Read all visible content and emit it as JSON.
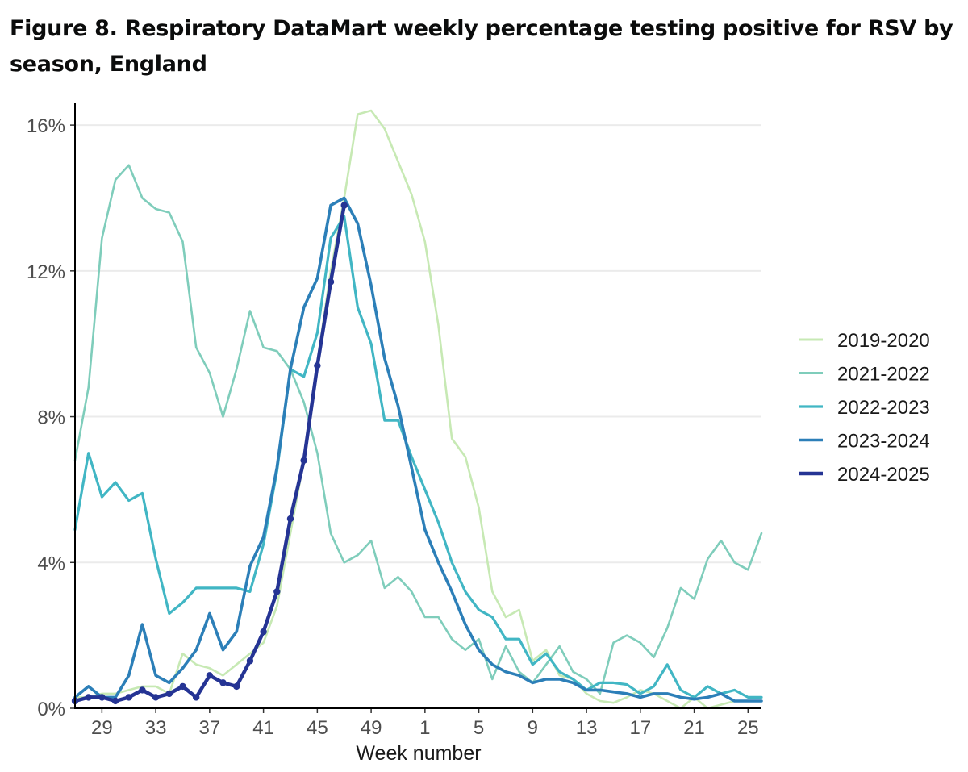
{
  "chart_data": {
    "type": "line",
    "title": "Figure 8. Respiratory DataMart weekly percentage testing positive for RSV by season, England",
    "xlabel": "Week number",
    "ylabel": "",
    "week_order": [
      27,
      28,
      29,
      30,
      31,
      32,
      33,
      34,
      35,
      36,
      37,
      38,
      39,
      40,
      41,
      42,
      43,
      44,
      45,
      46,
      47,
      48,
      49,
      50,
      51,
      52,
      1,
      2,
      3,
      4,
      5,
      6,
      7,
      8,
      9,
      10,
      11,
      12,
      13,
      14,
      15,
      16,
      17,
      18,
      19,
      20,
      21,
      22,
      23,
      24,
      25,
      26
    ],
    "x_ticks": [
      "29",
      "33",
      "37",
      "41",
      "45",
      "49",
      "1",
      "5",
      "9",
      "13",
      "17",
      "21",
      "25"
    ],
    "y_ticks": [
      "0%",
      "4%",
      "8%",
      "12%",
      "16%"
    ],
    "ylim": [
      0,
      16.6
    ],
    "series": [
      {
        "name": "2019-2020",
        "color": "#c7e9b4",
        "width": 2.6,
        "markers": false,
        "values": [
          0.3,
          0.3,
          0.4,
          0.4,
          0.5,
          0.6,
          0.6,
          0.4,
          1.5,
          1.2,
          1.1,
          0.9,
          1.2,
          1.5,
          1.8,
          2.8,
          4.8,
          6.8,
          9.5,
          12.0,
          14.0,
          16.3,
          16.4,
          15.9,
          15.0,
          14.1,
          12.8,
          10.5,
          7.4,
          6.9,
          5.5,
          3.2,
          2.5,
          2.7,
          1.3,
          1.6,
          0.9,
          0.8,
          0.4,
          0.2,
          0.15,
          0.3,
          0.5,
          0.4,
          0.2,
          0.0,
          0.3,
          0.0,
          0.1,
          0.2,
          0.2,
          0.2
        ]
      },
      {
        "name": "2021-2022",
        "color": "#7fcdbb",
        "width": 2.6,
        "markers": false,
        "values": [
          6.8,
          8.8,
          12.9,
          14.5,
          14.9,
          14.0,
          13.7,
          13.6,
          12.8,
          9.9,
          9.2,
          8.0,
          9.3,
          10.9,
          9.9,
          9.8,
          9.3,
          8.4,
          7.0,
          4.8,
          4.0,
          4.2,
          4.6,
          3.3,
          3.6,
          3.2,
          2.5,
          2.5,
          1.9,
          1.6,
          1.9,
          0.8,
          1.7,
          1.0,
          0.7,
          1.2,
          1.7,
          1.0,
          0.8,
          0.4,
          1.8,
          2.0,
          1.8,
          1.4,
          2.2,
          3.3,
          3.0,
          4.1,
          4.6,
          4.0,
          3.8,
          4.8
        ]
      },
      {
        "name": "2022-2023",
        "color": "#41b6c4",
        "width": 3.2,
        "markers": false,
        "values": [
          4.9,
          7.0,
          5.8,
          6.2,
          5.7,
          5.9,
          4.1,
          2.6,
          2.9,
          3.3,
          3.3,
          3.3,
          3.3,
          3.2,
          4.5,
          6.5,
          9.3,
          9.1,
          10.3,
          12.9,
          13.5,
          11.0,
          10.0,
          7.9,
          7.9,
          6.9,
          6.0,
          5.1,
          4.0,
          3.2,
          2.7,
          2.5,
          1.9,
          1.9,
          1.2,
          1.5,
          1.0,
          0.8,
          0.5,
          0.7,
          0.7,
          0.65,
          0.4,
          0.6,
          1.2,
          0.5,
          0.3,
          0.6,
          0.4,
          0.5,
          0.3,
          0.3
        ]
      },
      {
        "name": "2023-2024",
        "color": "#2c7fb8",
        "width": 3.6,
        "markers": false,
        "values": [
          0.3,
          0.6,
          0.3,
          0.3,
          0.9,
          2.3,
          0.9,
          0.7,
          1.1,
          1.6,
          2.6,
          1.6,
          2.1,
          3.9,
          4.7,
          6.6,
          9.3,
          11.0,
          11.8,
          13.8,
          14.0,
          13.3,
          11.6,
          9.6,
          8.3,
          6.6,
          4.9,
          4.0,
          3.2,
          2.3,
          1.6,
          1.2,
          1.0,
          0.9,
          0.7,
          0.8,
          0.8,
          0.7,
          0.5,
          0.5,
          0.45,
          0.4,
          0.3,
          0.4,
          0.4,
          0.3,
          0.25,
          0.3,
          0.4,
          0.2,
          0.2,
          0.2
        ]
      },
      {
        "name": "2024-2025",
        "color": "#253494",
        "width": 4.5,
        "markers": true,
        "values": [
          0.2,
          0.3,
          0.3,
          0.2,
          0.3,
          0.5,
          0.3,
          0.4,
          0.6,
          0.3,
          0.9,
          0.7,
          0.6,
          1.3,
          2.1,
          3.2,
          5.2,
          6.8,
          9.4,
          11.7,
          13.8
        ]
      }
    ]
  }
}
